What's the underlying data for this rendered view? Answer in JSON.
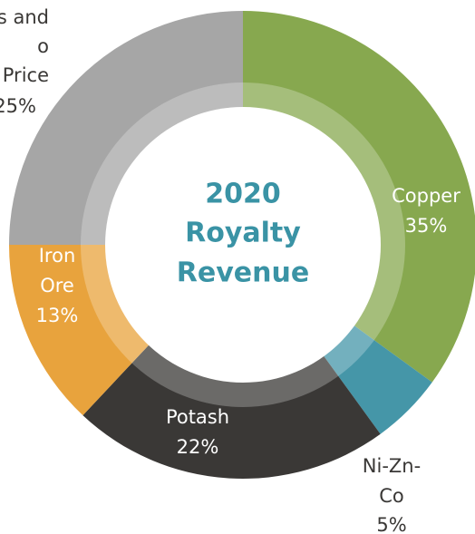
{
  "chart_data": {
    "type": "donut",
    "title_lines": [
      "2020",
      "Royalty",
      "Revenue"
    ],
    "categories": [
      "Copper",
      "Ni-Zn-Co",
      "Potash",
      "Iron Ore",
      "s and o Price"
    ],
    "label_lines": [
      [
        "Copper"
      ],
      [
        "Ni-Zn-",
        "Co"
      ],
      [
        "Potash"
      ],
      [
        "Iron",
        "Ore"
      ],
      [
        "s and",
        "o",
        "Price"
      ]
    ],
    "values": [
      35,
      5,
      22,
      13,
      25
    ],
    "value_labels": [
      "35%",
      "5%",
      "22%",
      "13%",
      "25%"
    ],
    "colors": [
      "#87a84f",
      "#4596a8",
      "#3a3836",
      "#e8a33d",
      "#a6a6a6"
    ],
    "label_colors": [
      "#ffffff",
      "#3a3836",
      "#ffffff",
      "#ffffff",
      "#3a3836"
    ]
  }
}
